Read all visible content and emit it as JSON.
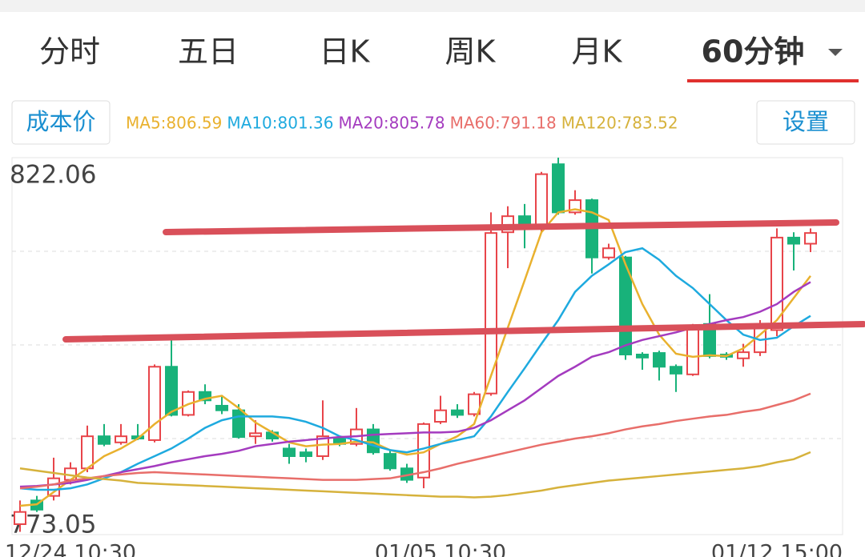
{
  "ui": {
    "tabs": [
      "分时",
      "五日",
      "日K",
      "周K",
      "月K",
      "60分钟"
    ],
    "active_tab": 5,
    "cost_button": "成本价",
    "settings_button": "设置"
  },
  "chart_data": {
    "type": "candlestick",
    "categories": [
      null,
      null,
      null,
      "12/24 10:30",
      null,
      null,
      null,
      null,
      null,
      null,
      null,
      null,
      null,
      null,
      null,
      null,
      null,
      null,
      null,
      null,
      null,
      null,
      null,
      null,
      null,
      "01/05 10:30",
      null,
      null,
      null,
      null,
      null,
      null,
      null,
      null,
      null,
      null,
      null,
      null,
      null,
      null,
      null,
      null,
      null,
      null,
      null,
      "01/12 15:00",
      null,
      null
    ],
    "open": [
      774.1,
      777.2,
      777.8,
      779.9,
      781.4,
      785.6,
      784.8,
      785.6,
      785.1,
      794.7,
      788.4,
      791.4,
      789.6,
      789.0,
      785.6,
      786.1,
      784.0,
      783.5,
      783.0,
      785.3,
      784.6,
      786.5,
      783.3,
      781.4,
      780.2,
      787.5,
      789.0,
      788.5,
      791.2,
      812.3,
      814.4,
      812.8,
      821.2,
      814.9,
      816.5,
      809.0,
      809.0,
      796.3,
      796.5,
      794.7,
      793.7,
      800.3,
      796.3,
      795.8,
      796.6,
      799.5,
      811.6,
      810.8
    ],
    "high": [
      777.2,
      777.8,
      782.8,
      782.2,
      787.0,
      787.2,
      787.2,
      787.2,
      795.0,
      798.2,
      791.6,
      792.4,
      790.9,
      789.8,
      787.7,
      786.4,
      784.6,
      784.0,
      790.3,
      785.6,
      789.3,
      787.2,
      783.7,
      782.0,
      787.4,
      790.9,
      789.8,
      791.4,
      814.9,
      815.7,
      816.0,
      820.2,
      822.06,
      817.8,
      816.7,
      810.8,
      809.2,
      796.6,
      796.8,
      795.0,
      800.3,
      804.2,
      796.6,
      797.7,
      800.8,
      812.8,
      812.3,
      812.8
    ],
    "low": [
      773.1,
      775.7,
      777.2,
      779.3,
      780.9,
      784.3,
      784.5,
      785.1,
      784.8,
      788.2,
      788.2,
      789.8,
      788.5,
      785.3,
      784.6,
      784.9,
      782.0,
      782.2,
      782.5,
      784.3,
      784.3,
      783.2,
      781.1,
      779.5,
      778.8,
      787.2,
      788.0,
      788.2,
      790.9,
      807.6,
      810.2,
      812.3,
      814.6,
      814.6,
      806.9,
      808.7,
      795.6,
      794.3,
      792.9,
      791.4,
      793.5,
      795.8,
      795.6,
      794.7,
      796.1,
      798.7,
      807.3,
      809.7
    ],
    "close": [
      775.7,
      776.0,
      780.1,
      781.4,
      785.6,
      784.6,
      785.6,
      785.3,
      794.7,
      788.4,
      791.4,
      790.3,
      789.0,
      785.5,
      786.0,
      785.3,
      783.0,
      783.0,
      785.6,
      784.6,
      786.5,
      783.5,
      781.4,
      779.9,
      787.2,
      789.0,
      788.4,
      791.1,
      812.2,
      814.4,
      812.8,
      819.9,
      814.9,
      816.5,
      809.0,
      810.2,
      796.3,
      795.9,
      794.7,
      793.8,
      799.8,
      796.1,
      796.0,
      796.6,
      799.8,
      811.6,
      810.8,
      812.2
    ],
    "up_color": "#e8454a",
    "down_color": "#18b27a",
    "series": [
      {
        "name": "MA5:806.59",
        "color": "#e9b12e",
        "values": [
          776.5,
          776.7,
          778.3,
          779.9,
          781.4,
          783.0,
          784.0,
          785.3,
          787.2,
          788.8,
          789.8,
          790.5,
          790.9,
          789.3,
          787.4,
          786.1,
          784.8,
          784.3,
          784.5,
          784.6,
          784.9,
          784.8,
          783.8,
          783.2,
          783.5,
          784.6,
          785.6,
          787.2,
          793.5,
          799.8,
          806.0,
          812.3,
          814.9,
          815.3,
          814.9,
          813.9,
          808.1,
          802.9,
          798.9,
          796.4,
          796.0,
          796.2,
          796.1,
          797.1,
          798.9,
          800.8,
          803.7,
          806.59
        ]
      },
      {
        "name": "MA10:801.36",
        "color": "#1eaadf",
        "values": [
          778.8,
          778.6,
          778.6,
          778.8,
          779.3,
          780.1,
          780.9,
          782.0,
          783.0,
          784.0,
          785.3,
          786.7,
          787.7,
          788.2,
          788.2,
          788.2,
          788.0,
          787.5,
          786.7,
          785.6,
          785.1,
          784.4,
          783.8,
          783.5,
          784.0,
          784.6,
          785.1,
          785.6,
          788.2,
          791.4,
          794.5,
          797.7,
          800.8,
          804.5,
          806.6,
          808.1,
          809.7,
          810.2,
          808.7,
          806.6,
          805.0,
          802.9,
          800.8,
          798.9,
          798.2,
          798.5,
          800.0,
          801.36
        ]
      },
      {
        "name": "MA20:805.78",
        "color": "#a43bbf",
        "values": [
          779.0,
          779.1,
          779.3,
          779.5,
          779.9,
          780.4,
          780.9,
          781.3,
          781.7,
          782.2,
          782.6,
          783.0,
          783.3,
          783.7,
          784.3,
          784.6,
          784.9,
          785.1,
          785.3,
          785.5,
          785.6,
          785.8,
          785.9,
          786.0,
          786.1,
          786.1,
          786.2,
          786.7,
          787.7,
          789.0,
          790.3,
          791.9,
          793.5,
          794.7,
          796.0,
          796.6,
          797.5,
          798.2,
          798.7,
          799.2,
          799.8,
          800.3,
          800.8,
          801.2,
          801.9,
          802.9,
          804.5,
          805.78
        ]
      },
      {
        "name": "MA60:791.18",
        "color": "#e86e6a",
        "values": [
          778.8,
          779.0,
          779.3,
          779.8,
          780.1,
          780.4,
          780.6,
          780.8,
          780.9,
          780.8,
          780.7,
          780.6,
          780.5,
          780.4,
          780.3,
          780.2,
          780.1,
          780.0,
          779.9,
          779.9,
          779.9,
          780.0,
          780.1,
          780.5,
          780.9,
          781.4,
          782.0,
          782.5,
          783.0,
          783.5,
          784.0,
          784.5,
          784.9,
          785.3,
          785.6,
          786.0,
          786.5,
          786.9,
          787.2,
          787.6,
          787.9,
          788.2,
          788.4,
          788.8,
          789.1,
          789.7,
          790.3,
          791.18
        ]
      },
      {
        "name": "MA120:783.52",
        "color": "#d6b23c",
        "values": [
          781.4,
          781.1,
          780.8,
          780.5,
          780.2,
          780.0,
          779.8,
          779.5,
          779.4,
          779.3,
          779.2,
          779.1,
          779.0,
          778.9,
          778.8,
          778.7,
          778.6,
          778.5,
          778.4,
          778.3,
          778.2,
          778.1,
          778.0,
          777.9,
          777.8,
          777.7,
          777.7,
          777.6,
          777.7,
          777.9,
          778.2,
          778.5,
          778.9,
          779.2,
          779.5,
          779.8,
          780.0,
          780.2,
          780.4,
          780.6,
          780.8,
          781.0,
          781.2,
          781.4,
          781.7,
          782.2,
          782.6,
          783.52
        ]
      }
    ],
    "ylim": [
      773.05,
      822.06
    ],
    "yticks": [
      773.05,
      822.06
    ],
    "grid": true,
    "grid_divisions": 4
  }
}
